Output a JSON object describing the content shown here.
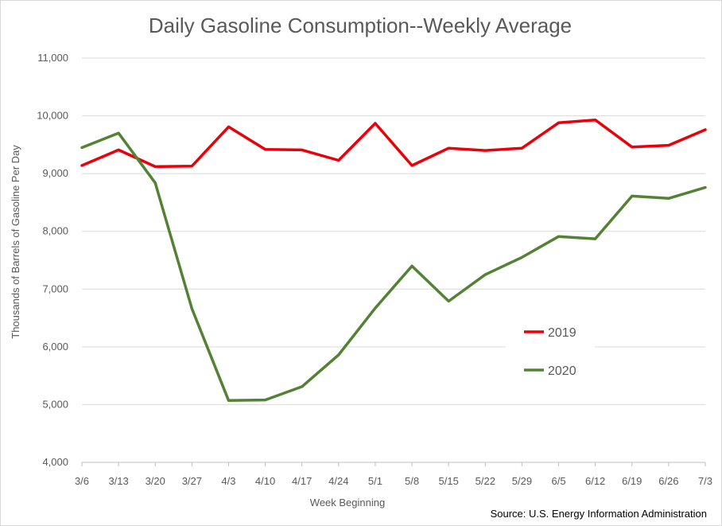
{
  "chart_data": {
    "type": "line",
    "title": "Daily Gasoline Consumption--Weekly Average",
    "xlabel": "Week Beginning",
    "ylabel": "Thousands of Barrels of Gasoline Per Day",
    "ylim": [
      4000,
      11000
    ],
    "y_ticks": [
      "4,000",
      "5,000",
      "6,000",
      "7,000",
      "8,000",
      "9,000",
      "10,000",
      "11,000"
    ],
    "y_tick_values": [
      4000,
      5000,
      6000,
      7000,
      8000,
      9000,
      10000,
      11000
    ],
    "grid": true,
    "legend_position": "right",
    "categories": [
      "3/6",
      "3/13",
      "3/20",
      "3/27",
      "4/3",
      "4/10",
      "4/17",
      "4/24",
      "5/1",
      "5/8",
      "5/15",
      "5/22",
      "5/29",
      "6/5",
      "6/12",
      "6/19",
      "6/26",
      "7/3"
    ],
    "series": [
      {
        "name": "2019",
        "color": "#e8000b",
        "values": [
          9140,
          9410,
          9120,
          9130,
          9810,
          9420,
          9410,
          9230,
          9870,
          9140,
          9440,
          9400,
          9440,
          9880,
          9930,
          9460,
          9490,
          9760
        ]
      },
      {
        "name": "2020",
        "color": "#548235",
        "values": [
          9450,
          9700,
          8840,
          6660,
          5070,
          5080,
          5310,
          5860,
          6670,
          7400,
          6790,
          7250,
          7550,
          7910,
          7870,
          8610,
          8570,
          8760
        ]
      }
    ],
    "source": "Source: U.S. Energy Information Administration"
  },
  "colors": {
    "grid": "#d9d9d9",
    "axis": "#bfbfbf",
    "text": "#595959"
  }
}
